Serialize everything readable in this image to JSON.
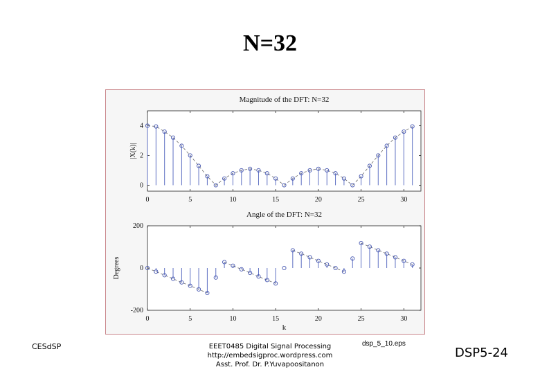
{
  "slide": {
    "title": "N=32",
    "footer_left": "CESdSP",
    "footer_course": "EEET0485 Digital Signal Processing",
    "footer_url": "http://embedsigproc.wordpress.com",
    "footer_author": "Asst. Prof. Dr. P.Yuvapoositanon",
    "footer_file": "dsp_5_10.eps",
    "footer_page": "DSP5-24"
  },
  "colors": {
    "stem": "#5d6fc2",
    "marker": "#4455b0",
    "dashed": "#666666",
    "axes": "#222222",
    "frame_border": "#c9858a",
    "frame_bg": "#f6f6f6"
  },
  "chart_data": [
    {
      "type": "stem",
      "title": "Magnitude of the DFT: N=32",
      "xlabel": "",
      "ylabel": "|X(k)|",
      "xlim": [
        0,
        32
      ],
      "ylim": [
        -0.4,
        5
      ],
      "xticks": [
        0,
        5,
        10,
        15,
        20,
        25,
        30
      ],
      "yticks": [
        0,
        2,
        4
      ],
      "x": [
        0,
        1,
        2,
        3,
        4,
        5,
        6,
        7,
        8,
        9,
        10,
        11,
        12,
        13,
        14,
        15,
        16,
        17,
        18,
        19,
        20,
        21,
        22,
        23,
        24,
        25,
        26,
        27,
        28,
        29,
        30,
        31
      ],
      "values": [
        4.0,
        3.95,
        3.6,
        3.2,
        2.65,
        2.0,
        1.3,
        0.6,
        0.0,
        0.45,
        0.8,
        1.0,
        1.1,
        1.0,
        0.8,
        0.45,
        0.0,
        0.45,
        0.8,
        1.0,
        1.1,
        1.0,
        0.8,
        0.45,
        0.0,
        0.6,
        1.3,
        2.0,
        2.65,
        3.2,
        3.6,
        3.95
      ]
    },
    {
      "type": "stem",
      "title": "Angle of the DFT: N=32",
      "xlabel": "k",
      "ylabel": "Degrees",
      "xlim": [
        0,
        32
      ],
      "ylim": [
        -200,
        200
      ],
      "xticks": [
        0,
        5,
        10,
        15,
        20,
        25,
        30
      ],
      "yticks": [
        -200,
        0,
        200
      ],
      "x": [
        0,
        1,
        2,
        3,
        4,
        5,
        6,
        7,
        8,
        9,
        10,
        11,
        12,
        13,
        14,
        15,
        16,
        17,
        18,
        19,
        20,
        21,
        22,
        23,
        24,
        25,
        26,
        27,
        28,
        29,
        30,
        31
      ],
      "values": [
        0,
        -17,
        -34,
        -51,
        -68,
        -84,
        -101,
        -118,
        -45,
        28,
        11,
        -6,
        -23,
        -40,
        -57,
        -73,
        0,
        84,
        68,
        51,
        34,
        17,
        0,
        -17,
        45,
        118,
        101,
        84,
        68,
        51,
        34,
        17
      ]
    }
  ]
}
